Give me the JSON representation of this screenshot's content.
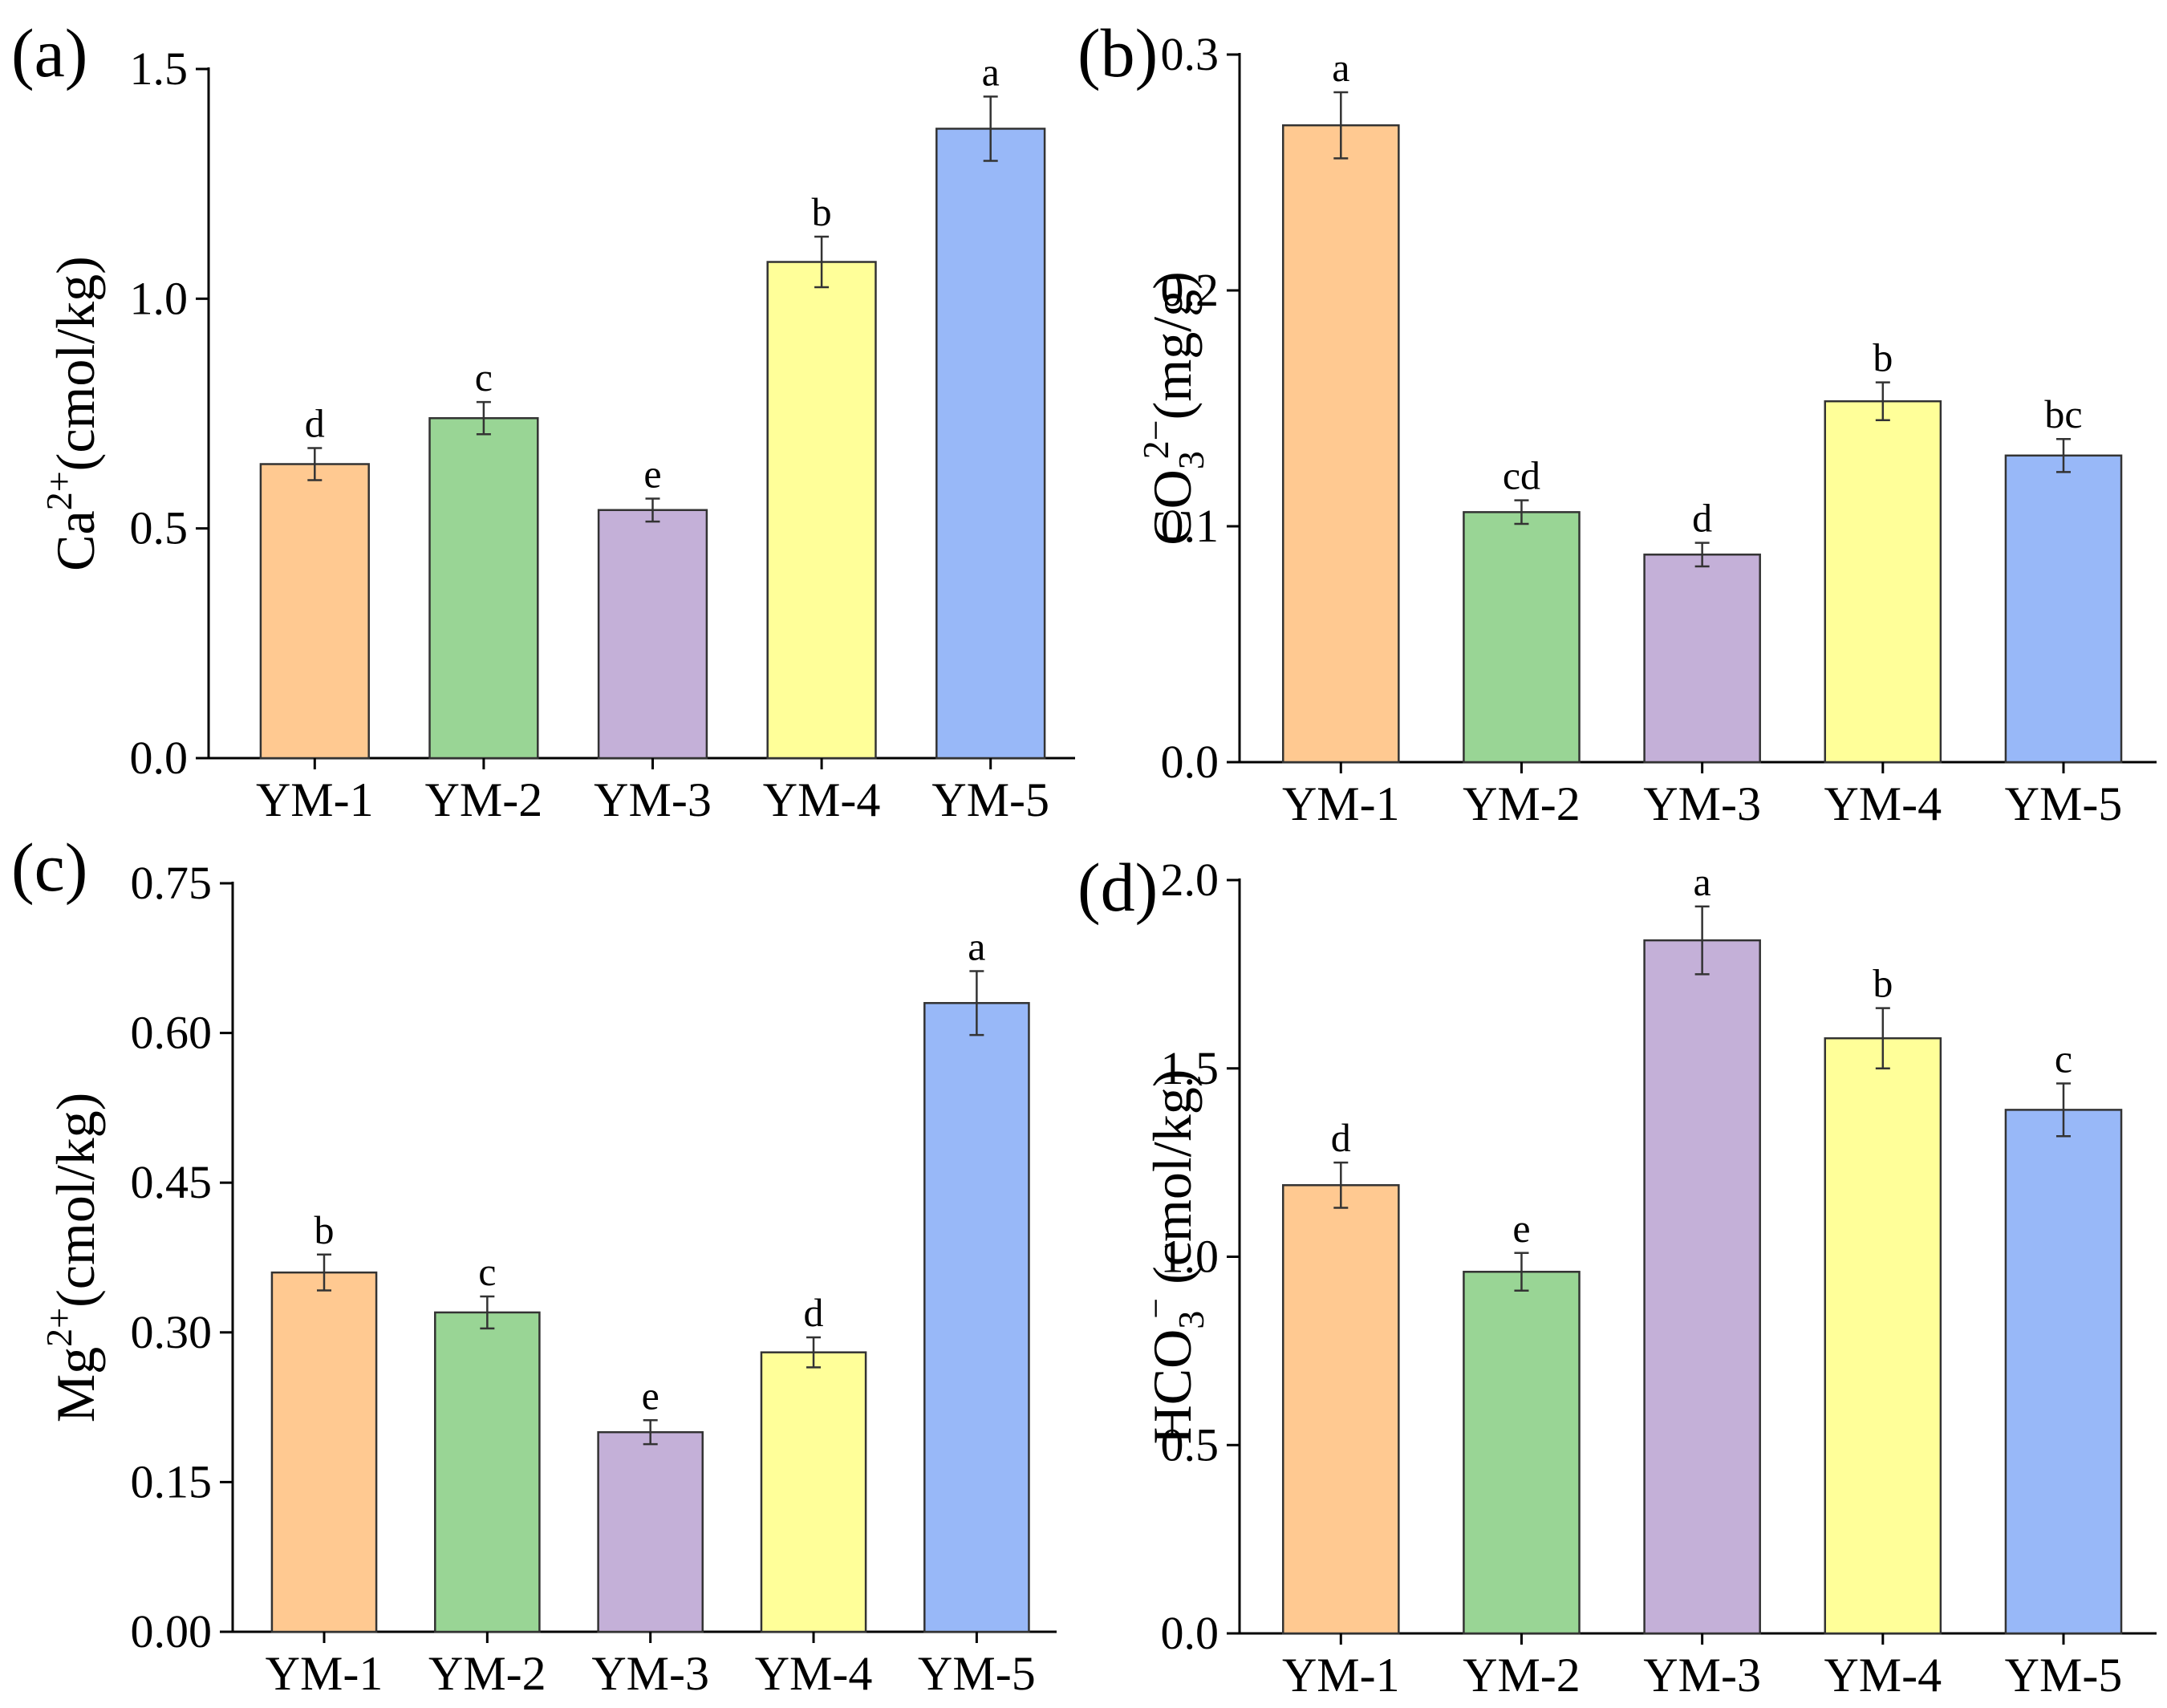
{
  "chart_data": [
    {
      "id": "a",
      "type": "bar",
      "panel_label": "(a)",
      "ylabel_main": "Ca",
      "ylabel_sup": "2+",
      "ylabel_sub": "",
      "ylabel_unit": "(cmol/kg)",
      "ylim": [
        0,
        1.5
      ],
      "yticks": [
        "0.0",
        "0.5",
        "1.0",
        "1.5"
      ],
      "categories": [
        "YM-1",
        "YM-2",
        "YM-3",
        "YM-4",
        "YM-5"
      ],
      "values": [
        0.64,
        0.74,
        0.54,
        1.08,
        1.37
      ],
      "errors": [
        0.035,
        0.035,
        0.025,
        0.055,
        0.07
      ],
      "letters": [
        "d",
        "c",
        "e",
        "b",
        "a"
      ],
      "colors": [
        "#FFC991",
        "#99D595",
        "#C4B0D8",
        "#FFFF99",
        "#98B8F8"
      ]
    },
    {
      "id": "b",
      "type": "bar",
      "panel_label": "(b)",
      "ylabel_main": "CO",
      "ylabel_sup": "2−",
      "ylabel_sub": "3",
      "ylabel_unit": "(mg/g)",
      "ylim": [
        0,
        0.3
      ],
      "yticks": [
        "0.0",
        "0.1",
        "0.2",
        "0.3"
      ],
      "categories": [
        "YM-1",
        "YM-2",
        "YM-3",
        "YM-4",
        "YM-5"
      ],
      "values": [
        0.27,
        0.106,
        0.088,
        0.153,
        0.13
      ],
      "errors": [
        0.014,
        0.005,
        0.005,
        0.008,
        0.007
      ],
      "letters": [
        "a",
        "cd",
        "d",
        "b",
        "bc"
      ],
      "colors": [
        "#FFC991",
        "#99D595",
        "#C4B0D8",
        "#FFFF99",
        "#98B8F8"
      ]
    },
    {
      "id": "c",
      "type": "bar",
      "panel_label": "(c)",
      "ylabel_main": "Mg",
      "ylabel_sup": "2+",
      "ylabel_sub": "",
      "ylabel_unit": "(cmol/kg)",
      "ylim": [
        0,
        0.75
      ],
      "yticks": [
        "0.00",
        "0.15",
        "0.30",
        "0.45",
        "0.60",
        "0.75"
      ],
      "categories": [
        "YM-1",
        "YM-2",
        "YM-3",
        "YM-4",
        "YM-5"
      ],
      "values": [
        0.36,
        0.32,
        0.2,
        0.28,
        0.63
      ],
      "errors": [
        0.018,
        0.016,
        0.012,
        0.015,
        0.032
      ],
      "letters": [
        "b",
        "c",
        "e",
        "d",
        "a"
      ],
      "colors": [
        "#FFC991",
        "#99D595",
        "#C4B0D8",
        "#FFFF99",
        "#98B8F8"
      ]
    },
    {
      "id": "d",
      "type": "bar",
      "panel_label": "(d)",
      "ylabel_main": "HCO",
      "ylabel_sup": "−",
      "ylabel_sub": "3",
      "ylabel_unit": " (cmol/kg)",
      "ylim": [
        0,
        2.0
      ],
      "yticks": [
        "0.0",
        "0.5",
        "1.0",
        "1.5",
        "2.0"
      ],
      "categories": [
        "YM-1",
        "YM-2",
        "YM-3",
        "YM-4",
        "YM-5"
      ],
      "values": [
        1.19,
        0.96,
        1.84,
        1.58,
        1.39
      ],
      "errors": [
        0.06,
        0.05,
        0.09,
        0.08,
        0.07
      ],
      "letters": [
        "d",
        "e",
        "a",
        "b",
        "c"
      ],
      "colors": [
        "#FFC991",
        "#99D595",
        "#C4B0D8",
        "#FFFF99",
        "#98B8F8"
      ]
    }
  ]
}
